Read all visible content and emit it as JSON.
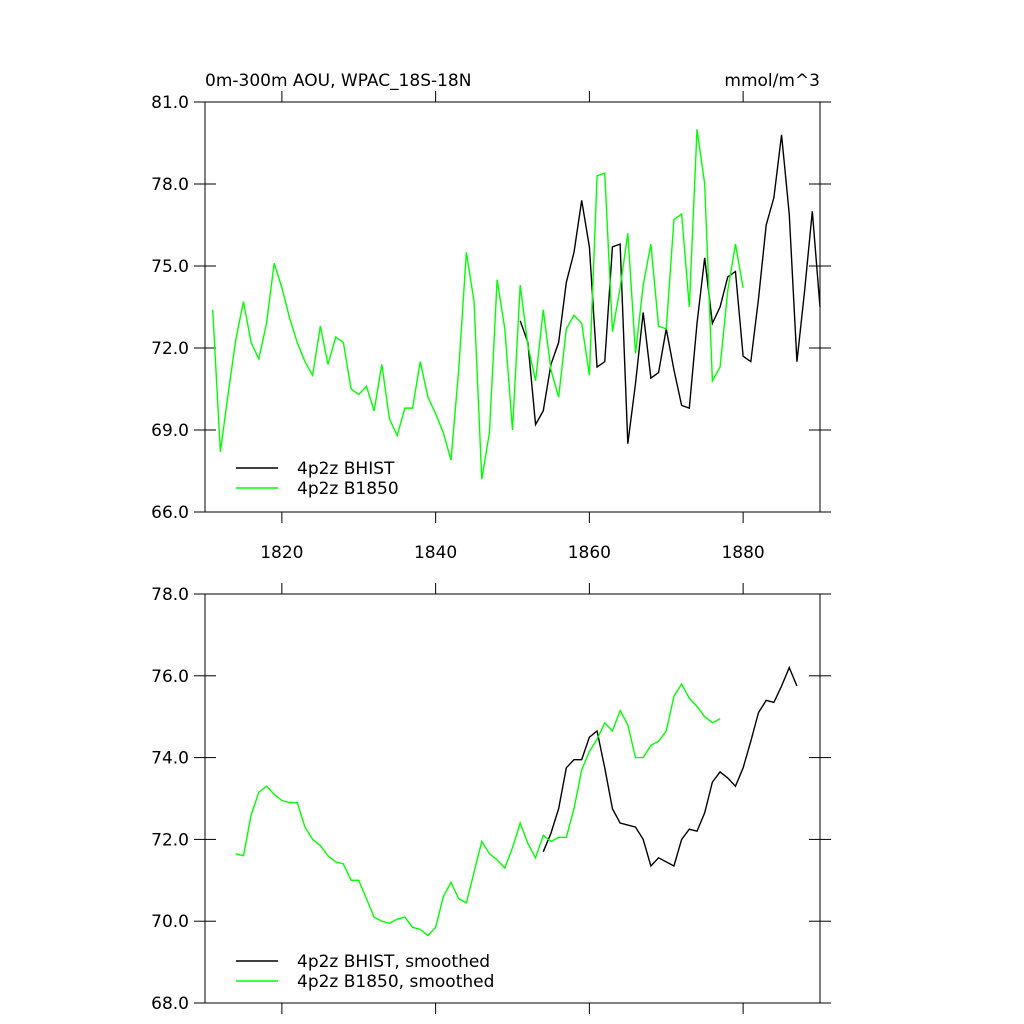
{
  "chart_data": [
    {
      "type": "line",
      "title": "0m-300m AOU, WPAC_18S-18N",
      "units": "mmol/m^3",
      "xlim": [
        1810,
        1890
      ],
      "xticks": [
        1820,
        1840,
        1860,
        1880
      ],
      "ylim": [
        66,
        81
      ],
      "yticks": [
        {
          "value": 66,
          "label": "66.0"
        },
        {
          "value": 69,
          "label": "69.0"
        },
        {
          "value": 72,
          "label": "72.0"
        },
        {
          "value": 75,
          "label": "75.0"
        },
        {
          "value": 78,
          "label": "78.0"
        },
        {
          "value": 81,
          "label": "81.0"
        }
      ],
      "legend": "lower left",
      "series": [
        {
          "name": "4p2z BHIST",
          "color": "#000000",
          "x": [
            1851,
            1852,
            1853,
            1854,
            1855,
            1856,
            1857,
            1858,
            1859,
            1860,
            1861,
            1862,
            1863,
            1864,
            1865,
            1866,
            1867,
            1868,
            1869,
            1870,
            1871,
            1872,
            1873,
            1874,
            1875,
            1876,
            1877,
            1878,
            1879,
            1880,
            1881,
            1882,
            1883,
            1884,
            1885,
            1886,
            1887,
            1888,
            1889,
            1890
          ],
          "values": [
            73.0,
            72.2,
            69.2,
            69.7,
            71.4,
            72.2,
            74.4,
            75.5,
            77.4,
            75.7,
            71.3,
            71.5,
            75.7,
            75.8,
            68.5,
            70.7,
            73.3,
            70.9,
            71.1,
            72.7,
            71.2,
            69.9,
            69.8,
            72.9,
            75.3,
            72.9,
            73.5,
            74.6,
            74.8,
            71.7,
            71.5,
            73.8,
            76.5,
            77.5,
            79.8,
            76.9,
            71.5,
            74.1,
            77.0,
            73.5
          ]
        },
        {
          "name": "4p2z B1850",
          "color": "#00ff00",
          "x": [
            1811,
            1812,
            1813,
            1814,
            1815,
            1816,
            1817,
            1818,
            1819,
            1820,
            1821,
            1822,
            1823,
            1824,
            1825,
            1826,
            1827,
            1828,
            1829,
            1830,
            1831,
            1832,
            1833,
            1834,
            1835,
            1836,
            1837,
            1838,
            1839,
            1840,
            1841,
            1842,
            1843,
            1844,
            1845,
            1846,
            1847,
            1848,
            1849,
            1850,
            1851,
            1852,
            1853,
            1854,
            1855,
            1856,
            1857,
            1858,
            1859,
            1860,
            1861,
            1862,
            1863,
            1864,
            1865,
            1866,
            1867,
            1868,
            1869,
            1870,
            1871,
            1872,
            1873,
            1874,
            1875,
            1876,
            1877,
            1878,
            1879,
            1880
          ],
          "values": [
            73.4,
            68.2,
            70.3,
            72.3,
            73.7,
            72.2,
            71.6,
            72.9,
            75.1,
            74.2,
            73.1,
            72.2,
            71.5,
            71.0,
            72.8,
            71.4,
            72.4,
            72.2,
            70.5,
            70.3,
            70.6,
            69.7,
            71.4,
            69.4,
            68.8,
            69.8,
            69.8,
            71.5,
            70.2,
            69.6,
            68.9,
            67.9,
            71.2,
            75.5,
            73.7,
            67.2,
            68.9,
            74.5,
            72.7,
            69.0,
            74.3,
            72.1,
            70.8,
            73.4,
            71.2,
            70.2,
            72.7,
            73.2,
            72.9,
            71.0,
            78.3,
            78.4,
            72.6,
            74.2,
            76.2,
            71.8,
            74.3,
            75.8,
            72.8,
            72.7,
            76.7,
            76.9,
            73.5,
            80.0,
            78.0,
            70.8,
            71.3,
            74.1,
            75.8,
            74.2
          ]
        }
      ]
    },
    {
      "type": "line",
      "xlim": [
        1810,
        1890
      ],
      "xticks": [
        1820,
        1840,
        1860,
        1880
      ],
      "ylim": [
        68,
        78
      ],
      "yticks": [
        {
          "value": 68,
          "label": "68.0"
        },
        {
          "value": 70,
          "label": "70.0"
        },
        {
          "value": 72,
          "label": "72.0"
        },
        {
          "value": 74,
          "label": "74.0"
        },
        {
          "value": 76,
          "label": "76.0"
        },
        {
          "value": 78,
          "label": "78.0"
        }
      ],
      "legend": "lower left",
      "series": [
        {
          "name": "4p2z BHIST, smoothed",
          "color": "#000000",
          "x": [
            1854,
            1855,
            1856,
            1857,
            1858,
            1859,
            1860,
            1861,
            1862,
            1863,
            1864,
            1865,
            1866,
            1867,
            1868,
            1869,
            1870,
            1871,
            1872,
            1873,
            1874,
            1875,
            1876,
            1877,
            1878,
            1879,
            1880,
            1881,
            1882,
            1883,
            1884,
            1885,
            1886,
            1887
          ],
          "values": [
            71.7,
            72.15,
            72.75,
            73.75,
            73.95,
            73.95,
            74.5,
            74.65,
            73.75,
            72.75,
            72.4,
            72.35,
            72.3,
            72.0,
            71.35,
            71.55,
            71.45,
            71.35,
            72.0,
            72.25,
            72.2,
            72.65,
            73.4,
            73.65,
            73.5,
            73.3,
            73.75,
            74.4,
            75.1,
            75.4,
            75.35,
            75.75,
            76.2,
            75.75
          ]
        },
        {
          "name": "4p2z B1850, smoothed",
          "color": "#00ff00",
          "x": [
            1814,
            1815,
            1816,
            1817,
            1818,
            1819,
            1820,
            1821,
            1822,
            1823,
            1824,
            1825,
            1826,
            1827,
            1828,
            1829,
            1830,
            1831,
            1832,
            1833,
            1834,
            1835,
            1836,
            1837,
            1838,
            1839,
            1840,
            1841,
            1842,
            1843,
            1844,
            1845,
            1846,
            1847,
            1848,
            1849,
            1850,
            1851,
            1852,
            1853,
            1854,
            1855,
            1856,
            1857,
            1858,
            1859,
            1860,
            1861,
            1862,
            1863,
            1864,
            1865,
            1866,
            1867,
            1868,
            1869,
            1870,
            1871,
            1872,
            1873,
            1874,
            1875,
            1876,
            1877
          ],
          "values": [
            71.65,
            71.6,
            72.6,
            73.15,
            73.3,
            73.1,
            72.95,
            72.9,
            72.9,
            72.3,
            72.0,
            71.85,
            71.6,
            71.45,
            71.4,
            71.0,
            71.0,
            70.55,
            70.1,
            70.0,
            69.95,
            70.05,
            70.1,
            69.85,
            69.8,
            69.65,
            69.85,
            70.6,
            70.95,
            70.55,
            70.45,
            71.2,
            71.95,
            71.65,
            71.5,
            71.3,
            71.8,
            72.4,
            71.9,
            71.55,
            72.1,
            71.95,
            72.05,
            72.05,
            72.75,
            73.7,
            74.15,
            74.45,
            74.85,
            74.65,
            75.15,
            74.8,
            74.0,
            74.0,
            74.3,
            74.4,
            74.65,
            75.5,
            75.8,
            75.45,
            75.25,
            75.0,
            74.85,
            74.95
          ]
        }
      ]
    }
  ]
}
